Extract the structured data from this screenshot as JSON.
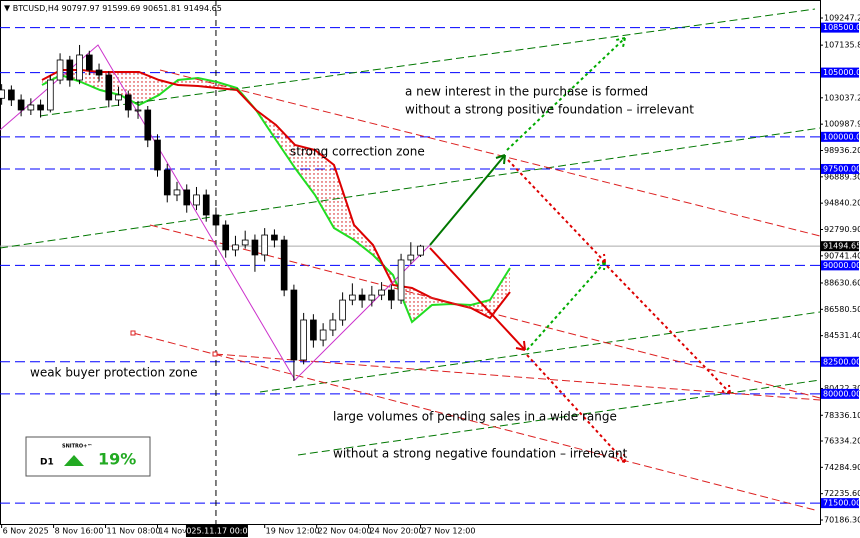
{
  "chart_data": {
    "type": "candlestick",
    "symbol": "BTCUSD,H4",
    "x": [
      "2025.11.06 00:00",
      "2025.11.06 12:00",
      "2025.11.07 00:00",
      "2025.11.07 12:00",
      "2025.11.08 00:00",
      "2025.11.08 12:00",
      "2025.11.09 00:00",
      "2025.11.09 12:00",
      "2025.11.10 00:00",
      "2025.11.10 12:00",
      "2025.11.11 00:00",
      "2025.11.11 12:00",
      "2025.11.12 00:00",
      "2025.11.12 12:00",
      "2025.11.13 00:00",
      "2025.11.13 12:00",
      "2025.11.14 00:00",
      "2025.11.14 12:00",
      "2025.11.15 00:00",
      "2025.11.15 12:00",
      "2025.11.16 00:00",
      "2025.11.16 12:00",
      "2025.11.17 00:00",
      "2025.11.17 12:00",
      "2025.11.18 00:00",
      "2025.11.18 12:00",
      "2025.11.19 00:00",
      "2025.11.19 12:00",
      "2025.11.20 00:00",
      "2025.11.20 12:00",
      "2025.11.21 00:00",
      "2025.11.21 12:00",
      "2025.11.22 00:00",
      "2025.11.22 12:00",
      "2025.11.23 00:00",
      "2025.11.23 12:00",
      "2025.11.24 00:00",
      "2025.11.24 12:00",
      "2025.11.25 00:00",
      "2025.11.25 12:00",
      "2025.11.26 00:00",
      "2025.11.26 12:00",
      "2025.11.27 00:00",
      "2025.11.27 12:00"
    ],
    "open": [
      103000,
      103650,
      102870,
      102090,
      102480,
      102090,
      104420,
      105980,
      104420,
      106370,
      105200,
      104810,
      102870,
      103260,
      102090,
      102090,
      99750,
      97420,
      95480,
      95870,
      94700,
      95480,
      93920,
      93140,
      91200,
      91590,
      91970,
      90810,
      92360,
      91970,
      88080,
      82640,
      85750,
      84190,
      84970,
      85750,
      87300,
      87690,
      87300,
      87690,
      88080,
      87300,
      90420,
      90797.97
    ],
    "high": [
      104100,
      104000,
      103300,
      103000,
      102900,
      104800,
      106500,
      106300,
      107150,
      106700,
      105700,
      105100,
      103900,
      103600,
      102800,
      102400,
      100200,
      97900,
      96500,
      96300,
      96100,
      95900,
      94500,
      93500,
      92300,
      92700,
      92400,
      92900,
      92800,
      92300,
      88500,
      86300,
      86200,
      85500,
      86300,
      87900,
      88600,
      88200,
      88400,
      88700,
      88500,
      90900,
      91800,
      91599.69
    ],
    "low": [
      102500,
      102400,
      101600,
      101700,
      101500,
      101900,
      104100,
      103900,
      104100,
      104800,
      104300,
      102300,
      102400,
      101500,
      101400,
      99200,
      96900,
      94900,
      95000,
      94100,
      94300,
      93400,
      92600,
      90600,
      90700,
      91300,
      89500,
      90300,
      91400,
      87600,
      81000,
      82300,
      83600,
      83700,
      84500,
      85300,
      86900,
      86700,
      86800,
      87300,
      86600,
      87000,
      90100,
      90651.81
    ],
    "close": [
      103650,
      102870,
      102090,
      102480,
      102090,
      104420,
      105980,
      104420,
      106370,
      105200,
      104810,
      102870,
      103260,
      102090,
      102090,
      99750,
      97420,
      95480,
      95870,
      94700,
      95480,
      93920,
      93140,
      91200,
      91590,
      91970,
      90810,
      92360,
      91970,
      88080,
      82640,
      85750,
      84190,
      84970,
      85750,
      87300,
      87690,
      87300,
      87690,
      88080,
      87300,
      90420,
      90800,
      91494.65
    ],
    "up_color": "#ffffff",
    "down_color": "#000000",
    "xlim": [
      "2025.11.05 22:00",
      "2025.12.18 00:00"
    ],
    "ylim": [
      69798,
      110648
    ],
    "xticks": [
      {
        "value": "2025.11.06 00:00",
        "label": "6 Nov 2025"
      },
      {
        "value": "2025.11.08 16:00",
        "label": "8 Nov 16:00"
      },
      {
        "value": "2025.11.11 08:00",
        "label": "11 Nov 08:00"
      },
      {
        "value": "2025.11.14 00:00",
        "label": "14 Nov 00:00"
      },
      {
        "value": "2025.11.19 12:00",
        "label": "19 Nov 12:00"
      },
      {
        "value": "2025.11.22 04:00",
        "label": "22 Nov 04:00"
      },
      {
        "value": "2025.11.24 20:00",
        "label": "24 Nov 20:00"
      },
      {
        "value": "2025.11.27 12:00",
        "label": "27 Nov 12:00"
      }
    ],
    "crosshair_x": "2025.11.17 00:00",
    "yticks": [
      {
        "value": 109247.2,
        "label": "109247.20"
      },
      {
        "value": 107135.8,
        "label": "107135.80"
      },
      {
        "value": 103037.2,
        "label": "103037.20"
      },
      {
        "value": 100987.9,
        "label": "100987.90"
      },
      {
        "value": 98936.2,
        "label": "98936.20"
      },
      {
        "value": 96889.3,
        "label": "96889.30"
      },
      {
        "value": 94840.2,
        "label": "94840.20"
      },
      {
        "value": 92790.9,
        "label": "92790.90"
      },
      {
        "value": 90741.4,
        "label": "90741.40"
      },
      {
        "value": 88630.6,
        "label": "88630.60"
      },
      {
        "value": 86580.5,
        "label": "86580.50"
      },
      {
        "value": 84531.4,
        "label": "84531.40"
      },
      {
        "value": 80422.3,
        "label": "80422.30"
      },
      {
        "value": 78336.1,
        "label": "78336.10"
      },
      {
        "value": 76334.2,
        "label": "76334.20"
      },
      {
        "value": 74284.9,
        "label": "74284.90"
      },
      {
        "value": 72235.6,
        "label": "72235.60"
      },
      {
        "value": 70186.3,
        "label": "70186.30"
      }
    ],
    "levels": [
      {
        "value": 108500,
        "label": "108500.00"
      },
      {
        "value": 105000,
        "label": "105000.00"
      },
      {
        "value": 100000,
        "label": "100000.00"
      },
      {
        "value": 97500,
        "label": "97500.00"
      },
      {
        "value": 90000,
        "label": "90000.00"
      },
      {
        "value": 82500,
        "label": "82500.00"
      },
      {
        "value": 80000,
        "label": "80000.00"
      },
      {
        "value": 71500,
        "label": "71500.00"
      }
    ],
    "level_color": "#0000ff",
    "annotations": [
      "a new interest in the purchase is formed",
      "without a strong positive foundation – irrelevant",
      "strong correction zone",
      "weak buyer protection zone",
      "large volumes of pending sales in a wide range",
      "without a strong negative foundation – irrelevant"
    ],
    "widget": {
      "brand": "SNITRO+™",
      "timeframe": "D1",
      "change": "19%"
    }
  }
}
